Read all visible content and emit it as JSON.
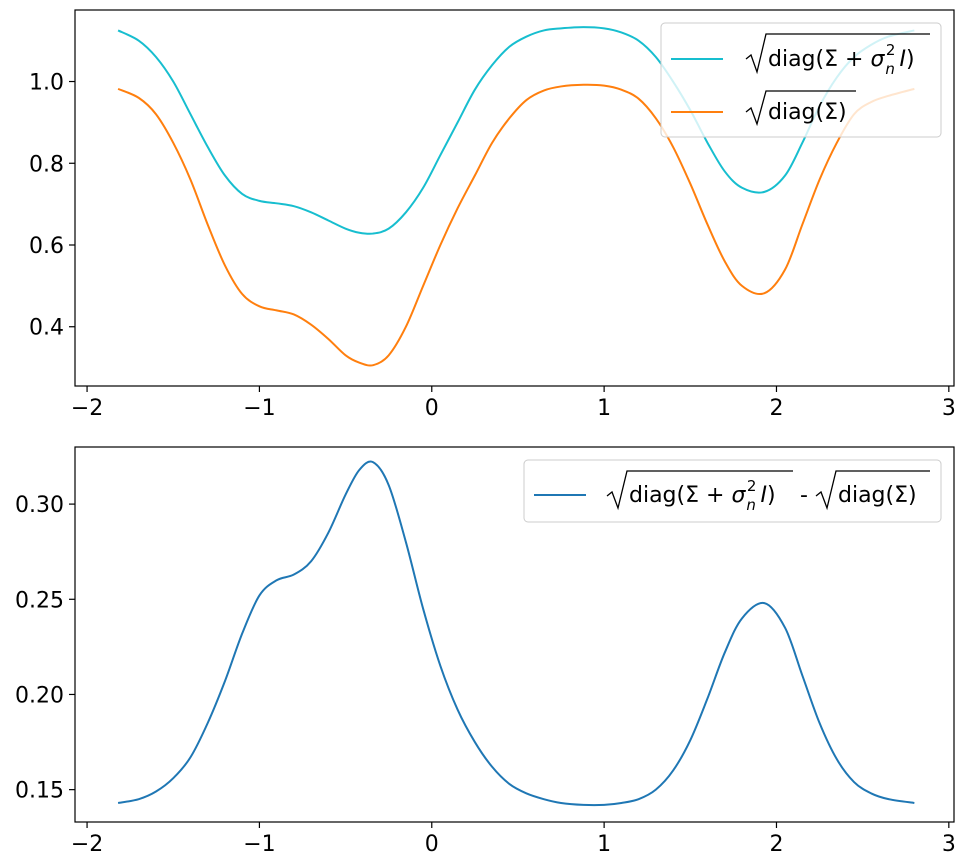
{
  "chart_data": [
    {
      "type": "line",
      "title": "",
      "xlabel": "",
      "ylabel": "",
      "xlim": [
        -2.07,
        3.03
      ],
      "ylim": [
        0.255,
        1.175
      ],
      "xticks": [
        -2,
        -1,
        0,
        1,
        2,
        3
      ],
      "xtick_labels": [
        "−2",
        "−1",
        "0",
        "1",
        "2",
        "3"
      ],
      "yticks": [
        0.4,
        0.6,
        0.8,
        1.0
      ],
      "ytick_labels": [
        "0.4",
        "0.6",
        "0.8",
        "1.0"
      ],
      "grid": false,
      "legend_position": "top-right",
      "x": [
        -1.82,
        -1.7,
        -1.6,
        -1.5,
        -1.4,
        -1.3,
        -1.2,
        -1.1,
        -1.0,
        -0.9,
        -0.8,
        -0.7,
        -0.6,
        -0.5,
        -0.42,
        -0.34,
        -0.25,
        -0.15,
        -0.05,
        0.05,
        0.15,
        0.25,
        0.35,
        0.45,
        0.55,
        0.65,
        0.75,
        0.88,
        1.0,
        1.1,
        1.2,
        1.3,
        1.4,
        1.5,
        1.6,
        1.7,
        1.8,
        1.93,
        2.05,
        2.15,
        2.25,
        2.35,
        2.45,
        2.55,
        2.65,
        2.8
      ],
      "series": [
        {
          "name": "sqrt_total",
          "color": "#17becf",
          "values": [
            1.125,
            1.1,
            1.06,
            1.0,
            0.92,
            0.84,
            0.77,
            0.725,
            0.708,
            0.702,
            0.695,
            0.68,
            0.66,
            0.64,
            0.63,
            0.628,
            0.64,
            0.68,
            0.74,
            0.82,
            0.9,
            0.98,
            1.04,
            1.085,
            1.11,
            1.125,
            1.13,
            1.133,
            1.13,
            1.12,
            1.1,
            1.06,
            1.0,
            0.93,
            0.85,
            0.78,
            0.74,
            0.73,
            0.77,
            0.85,
            0.94,
            1.01,
            1.06,
            1.09,
            1.11,
            1.125
          ]
        },
        {
          "name": "sqrt_diag",
          "color": "#ff7f0e",
          "values": [
            0.982,
            0.96,
            0.92,
            0.85,
            0.76,
            0.65,
            0.55,
            0.48,
            0.45,
            0.44,
            0.43,
            0.405,
            0.37,
            0.33,
            0.312,
            0.306,
            0.33,
            0.4,
            0.5,
            0.6,
            0.69,
            0.77,
            0.85,
            0.91,
            0.955,
            0.978,
            0.988,
            0.992,
            0.99,
            0.98,
            0.958,
            0.91,
            0.84,
            0.75,
            0.65,
            0.56,
            0.5,
            0.482,
            0.54,
            0.65,
            0.76,
            0.85,
            0.92,
            0.95,
            0.965,
            0.982
          ]
        }
      ]
    },
    {
      "type": "line",
      "title": "",
      "xlabel": "",
      "ylabel": "",
      "xlim": [
        -2.07,
        3.03
      ],
      "ylim": [
        0.133,
        0.33
      ],
      "xticks": [
        -2,
        -1,
        0,
        1,
        2,
        3
      ],
      "xtick_labels": [
        "−2",
        "−1",
        "0",
        "1",
        "2",
        "3"
      ],
      "yticks": [
        0.15,
        0.2,
        0.25,
        0.3
      ],
      "ytick_labels": [
        "0.15",
        "0.20",
        "0.25",
        "0.30"
      ],
      "grid": false,
      "legend_position": "top-right",
      "x": [
        -1.82,
        -1.7,
        -1.6,
        -1.5,
        -1.4,
        -1.3,
        -1.2,
        -1.1,
        -1.0,
        -0.9,
        -0.8,
        -0.7,
        -0.6,
        -0.5,
        -0.42,
        -0.34,
        -0.25,
        -0.15,
        -0.05,
        0.05,
        0.15,
        0.25,
        0.35,
        0.45,
        0.55,
        0.65,
        0.75,
        0.88,
        1.0,
        1.1,
        1.2,
        1.3,
        1.4,
        1.5,
        1.6,
        1.7,
        1.8,
        1.93,
        2.05,
        2.15,
        2.25,
        2.35,
        2.45,
        2.55,
        2.65,
        2.8
      ],
      "series": [
        {
          "name": "difference",
          "color": "#1f77b4",
          "values": [
            0.143,
            0.145,
            0.149,
            0.156,
            0.167,
            0.185,
            0.207,
            0.232,
            0.252,
            0.26,
            0.263,
            0.27,
            0.285,
            0.305,
            0.318,
            0.322,
            0.31,
            0.28,
            0.245,
            0.215,
            0.192,
            0.175,
            0.162,
            0.153,
            0.148,
            0.145,
            0.143,
            0.142,
            0.142,
            0.143,
            0.145,
            0.15,
            0.16,
            0.176,
            0.198,
            0.222,
            0.24,
            0.248,
            0.235,
            0.21,
            0.185,
            0.166,
            0.154,
            0.148,
            0.145,
            0.143
          ]
        }
      ]
    }
  ]
}
